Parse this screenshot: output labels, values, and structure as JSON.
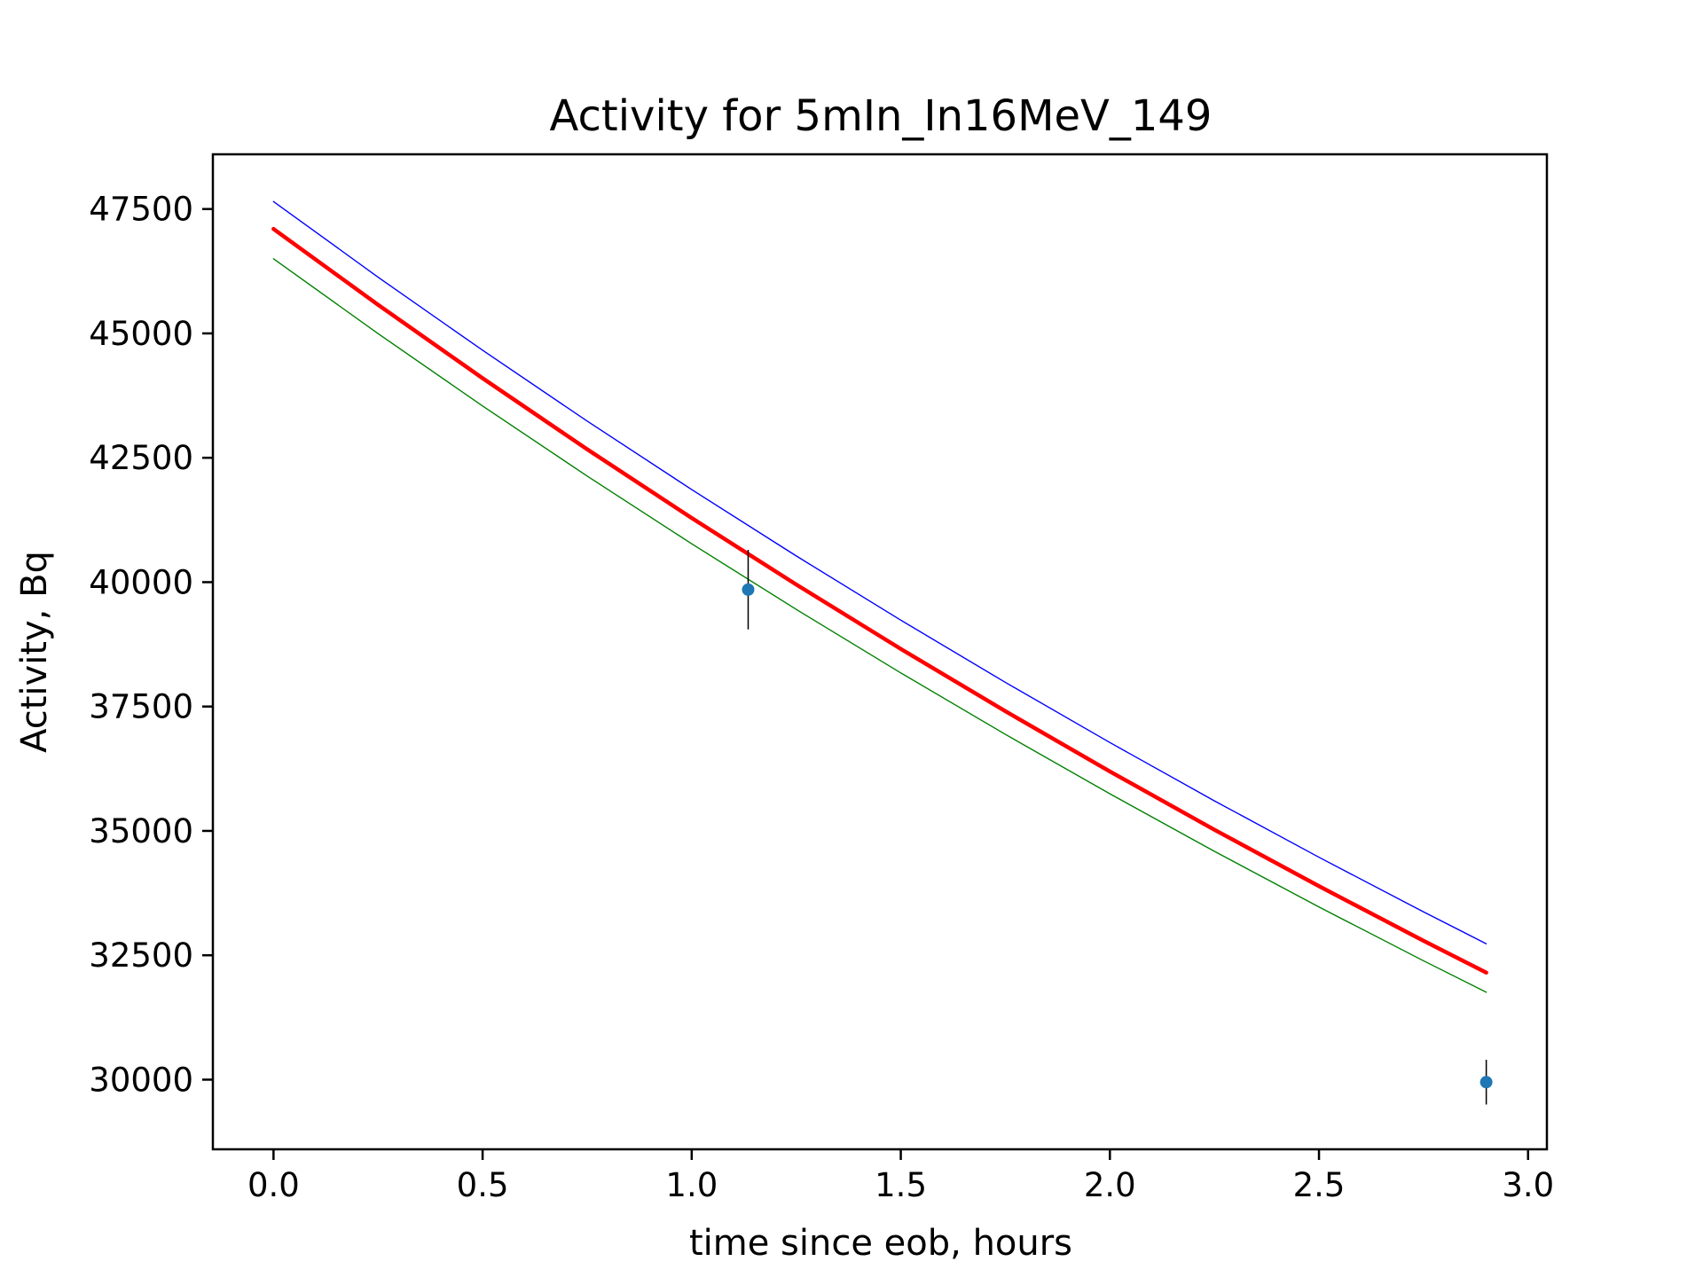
{
  "chart_data": {
    "type": "line",
    "title": "Activity for 5mIn_In16MeV_149",
    "xlabel": "time since eob, hours",
    "ylabel": "Activity, Bq",
    "xlim": [
      -0.145,
      3.045
    ],
    "ylim": [
      28600,
      48600
    ],
    "xticks": [
      0.0,
      0.5,
      1.0,
      1.5,
      2.0,
      2.5,
      3.0
    ],
    "xtick_labels": [
      "0.0",
      "0.5",
      "1.0",
      "1.5",
      "2.0",
      "2.5",
      "3.0"
    ],
    "yticks": [
      30000,
      32500,
      35000,
      37500,
      40000,
      42500,
      45000,
      47500
    ],
    "ytick_labels": [
      "30000",
      "32500",
      "35000",
      "37500",
      "40000",
      "42500",
      "45000",
      "47500"
    ],
    "grid": false,
    "legend": "none",
    "series": [
      {
        "style": "upper-bound",
        "color": "#0000ff",
        "x": [
          0.0,
          0.25,
          0.5,
          0.75,
          1.0,
          1.25,
          1.5,
          1.75,
          2.0,
          2.25,
          2.5,
          2.75,
          2.9
        ],
        "y": [
          47650,
          46131,
          44661,
          43238,
          41861,
          40527,
          39236,
          37986,
          36776,
          35604,
          34470,
          33372,
          32732
        ]
      },
      {
        "style": "fit",
        "color": "#ff0000",
        "x": [
          0.0,
          0.25,
          0.5,
          0.75,
          1.0,
          1.25,
          1.5,
          1.75,
          2.0,
          2.25,
          2.5,
          2.75,
          2.9
        ],
        "y": [
          47100,
          45575,
          44099,
          42671,
          41289,
          39952,
          38658,
          37406,
          36195,
          35023,
          33889,
          32791,
          32152
        ]
      },
      {
        "style": "lower-bound",
        "color": "#008000",
        "x": [
          0.0,
          0.25,
          0.5,
          0.75,
          1.0,
          1.25,
          1.5,
          1.75,
          2.0,
          2.25,
          2.5,
          2.75,
          2.9
        ],
        "y": [
          46500,
          44996,
          43541,
          42133,
          40771,
          39452,
          38176,
          36941,
          35746,
          34590,
          33471,
          32389,
          31758
        ]
      }
    ],
    "points": [
      {
        "x": 1.135,
        "y": 39850,
        "yerr": 800
      },
      {
        "x": 2.9,
        "y": 29950,
        "yerr": 450
      }
    ],
    "colors": {
      "point": "#1f77b4",
      "errorbar": "#000000"
    }
  }
}
